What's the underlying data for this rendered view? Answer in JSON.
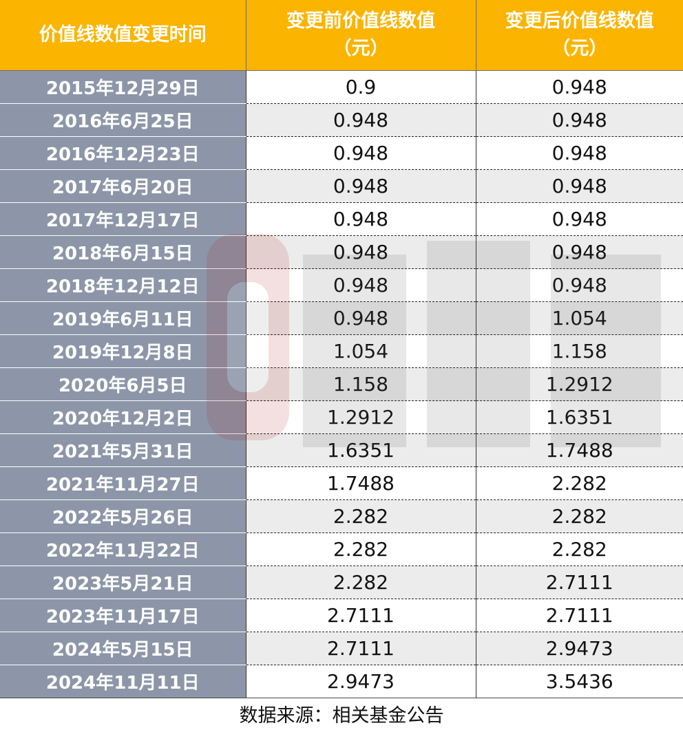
{
  "table": {
    "headers": [
      [
        "价值线数值变更时间"
      ],
      [
        "变更前价值线数值",
        "（元）"
      ],
      [
        "变更后价值线数值",
        "（元）"
      ]
    ],
    "rows": [
      {
        "date": "2015年12月29日",
        "before": "0.9",
        "after": "0.948"
      },
      {
        "date": "2016年6月25日",
        "before": "0.948",
        "after": "0.948"
      },
      {
        "date": "2016年12月23日",
        "before": "0.948",
        "after": "0.948"
      },
      {
        "date": "2017年6月20日",
        "before": "0.948",
        "after": "0.948"
      },
      {
        "date": "2017年12月17日",
        "before": "0.948",
        "after": "0.948"
      },
      {
        "date": "2018年6月15日",
        "before": "0.948",
        "after": "0.948"
      },
      {
        "date": "2018年12月12日",
        "before": "0.948",
        "after": "0.948"
      },
      {
        "date": "2019年6月11日",
        "before": "0.948",
        "after": "1.054"
      },
      {
        "date": "2019年12月8日",
        "before": "1.054",
        "after": "1.158"
      },
      {
        "date": "2020年6月5日",
        "before": "1.158",
        "after": "1.2912"
      },
      {
        "date": "2020年12月2日",
        "before": "1.2912",
        "after": "1.6351"
      },
      {
        "date": "2021年5月31日",
        "before": "1.6351",
        "after": "1.7488"
      },
      {
        "date": "2021年11月27日",
        "before": "1.7488",
        "after": "2.282"
      },
      {
        "date": "2022年5月26日",
        "before": "2.282",
        "after": "2.282"
      },
      {
        "date": "2022年11月22日",
        "before": "2.282",
        "after": "2.282"
      },
      {
        "date": "2023年5月21日",
        "before": "2.282",
        "after": "2.7111"
      },
      {
        "date": "2023年11月17日",
        "before": "2.7111",
        "after": "2.7111"
      },
      {
        "date": "2024年5月15日",
        "before": "2.7111",
        "after": "2.9473"
      },
      {
        "date": "2024年11月11日",
        "before": "2.9473",
        "after": "3.5436"
      }
    ]
  },
  "footer": {
    "source": "数据来源：相关基金公告"
  },
  "watermark": {
    "text": "财联社",
    "color": "#b01818"
  },
  "colors": {
    "header_bg": "#fbb400",
    "date_col_bg": "#8c96a8",
    "stripe_bg": "#ececec"
  }
}
